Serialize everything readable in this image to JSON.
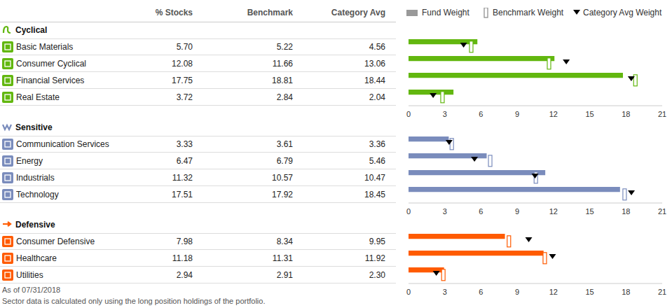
{
  "table": {
    "columns": [
      "% Stocks",
      "Benchmark",
      "Category Avg"
    ]
  },
  "chart_data": [
    {
      "type": "bar",
      "orientation": "horizontal",
      "title": "Cyclical",
      "categories": [
        "Basic Materials",
        "Consumer Cyclical",
        "Financial Services",
        "Real Estate"
      ],
      "series": [
        {
          "name": "Fund Weight",
          "type": "bar",
          "color": "#62b70f",
          "values": [
            5.7,
            12.08,
            17.75,
            3.72
          ],
          "value_labels": [
            "5.70",
            "12.08",
            "17.75",
            "3.72"
          ]
        },
        {
          "name": "Benchmark Weight",
          "type": "scatter",
          "marker": "square",
          "color": "#62b70f",
          "values": [
            5.22,
            11.66,
            18.81,
            2.84
          ],
          "value_labels": [
            "5.22",
            "11.66",
            "18.81",
            "2.84"
          ]
        },
        {
          "name": "Category Avg Weight",
          "type": "scatter",
          "marker": "triangle",
          "color": "#000000",
          "values": [
            4.56,
            13.06,
            18.44,
            2.04
          ],
          "value_labels": [
            "4.56",
            "13.06",
            "18.44",
            "2.04"
          ]
        }
      ],
      "xlim": [
        0,
        21
      ],
      "xticks": [
        0,
        3,
        6,
        9,
        12,
        15,
        18,
        21
      ]
    },
    {
      "type": "bar",
      "orientation": "horizontal",
      "title": "Sensitive",
      "categories": [
        "Communication Services",
        "Energy",
        "Industrials",
        "Technology"
      ],
      "series": [
        {
          "name": "Fund Weight",
          "type": "bar",
          "color": "#7a8cbc",
          "values": [
            3.33,
            6.47,
            11.32,
            17.51
          ],
          "value_labels": [
            "3.33",
            "6.47",
            "11.32",
            "17.51"
          ]
        },
        {
          "name": "Benchmark Weight",
          "type": "scatter",
          "marker": "square",
          "color": "#7a8cbc",
          "values": [
            3.61,
            6.79,
            10.57,
            17.92
          ],
          "value_labels": [
            "3.61",
            "6.79",
            "10.57",
            "17.92"
          ]
        },
        {
          "name": "Category Avg Weight",
          "type": "scatter",
          "marker": "triangle",
          "color": "#000000",
          "values": [
            3.36,
            5.46,
            10.47,
            18.45
          ],
          "value_labels": [
            "3.36",
            "5.46",
            "10.47",
            "18.45"
          ]
        }
      ],
      "xlim": [
        0,
        21
      ],
      "xticks": [
        0,
        3,
        6,
        9,
        12,
        15,
        18,
        21
      ]
    },
    {
      "type": "bar",
      "orientation": "horizontal",
      "title": "Defensive",
      "categories": [
        "Consumer Defensive",
        "Healthcare",
        "Utilities"
      ],
      "series": [
        {
          "name": "Fund Weight",
          "type": "bar",
          "color": "#ff5b00",
          "values": [
            7.98,
            11.18,
            2.94
          ],
          "value_labels": [
            "7.98",
            "11.18",
            "2.94"
          ]
        },
        {
          "name": "Benchmark Weight",
          "type": "scatter",
          "marker": "square",
          "color": "#ff5b00",
          "values": [
            8.34,
            11.31,
            2.91
          ],
          "value_labels": [
            "8.34",
            "11.31",
            "2.91"
          ]
        },
        {
          "name": "Category Avg Weight",
          "type": "scatter",
          "marker": "triangle",
          "color": "#000000",
          "values": [
            9.95,
            11.92,
            2.3
          ],
          "value_labels": [
            "9.95",
            "11.92",
            "2.30"
          ]
        }
      ],
      "xlim": [
        0,
        21
      ],
      "xticks": [
        0,
        3,
        6,
        9,
        12,
        15,
        18,
        21
      ]
    }
  ],
  "footnotes": [
    "As of 07/31/2018",
    "Sector data is calculated only using the long position holdings of the portfolio."
  ]
}
